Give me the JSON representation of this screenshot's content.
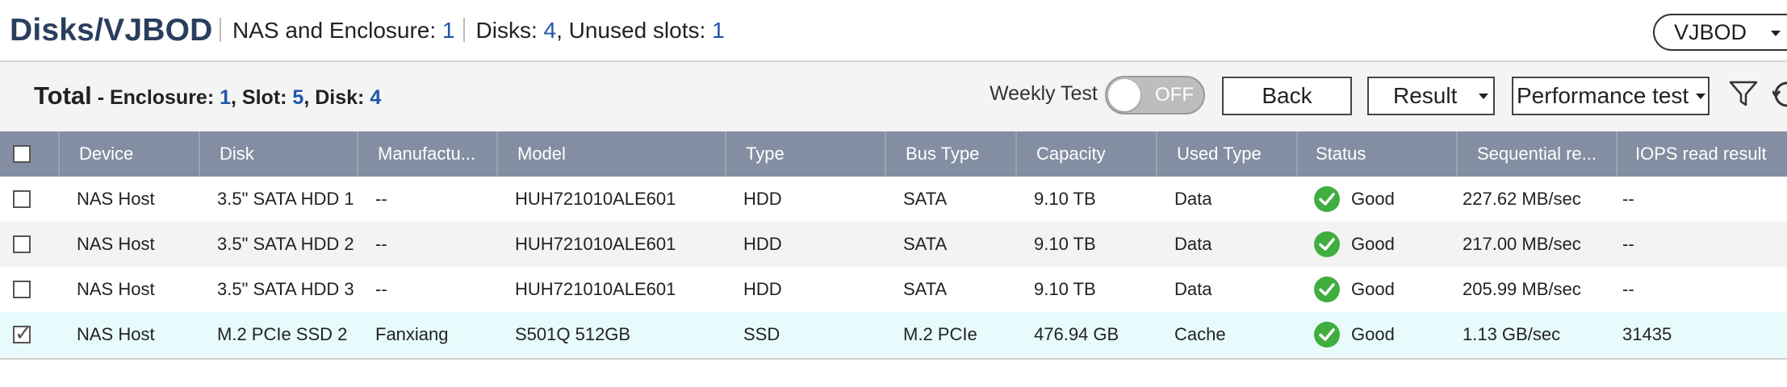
{
  "header": {
    "title": "Disks/VJBOD",
    "enclosure_label": "NAS and Enclosure: ",
    "enclosure_count": "1",
    "disks_label": "Disks: ",
    "disks_count": "4",
    "unused_label": ", Unused slots: ",
    "unused_count": "1",
    "view_select": "VJBOD"
  },
  "toolbar": {
    "total_label": "Total",
    "enclosure_label": " - Enclosure: ",
    "enclosure_count": "1",
    "slot_label": ", Slot: ",
    "slot_count": "5",
    "disk_label": ", Disk: ",
    "disk_count": "4",
    "weekly_test_label": "Weekly Test",
    "weekly_test_state": "OFF",
    "back_label": "Back",
    "result_label": "Result",
    "performance_label": "Performance test"
  },
  "table": {
    "columns": [
      "Device",
      "Disk",
      "Manufactu...",
      "Model",
      "Type",
      "Bus Type",
      "Capacity",
      "Used Type",
      "Status",
      "Sequential re...",
      "IOPS read result"
    ],
    "rows": [
      {
        "device": "NAS Host",
        "disk": "3.5\" SATA HDD 1",
        "manufacturer": "--",
        "model": "HUH721010ALE601",
        "type": "HDD",
        "bus": "SATA",
        "capacity": "9.10 TB",
        "used": "Data",
        "status": "Good",
        "sequential": "227.62 MB/sec",
        "iops": "--",
        "checked": false
      },
      {
        "device": "NAS Host",
        "disk": "3.5\" SATA HDD 2",
        "manufacturer": "--",
        "model": "HUH721010ALE601",
        "type": "HDD",
        "bus": "SATA",
        "capacity": "9.10 TB",
        "used": "Data",
        "status": "Good",
        "sequential": "217.00 MB/sec",
        "iops": "--",
        "checked": false
      },
      {
        "device": "NAS Host",
        "disk": "3.5\" SATA HDD 3",
        "manufacturer": "--",
        "model": "HUH721010ALE601",
        "type": "HDD",
        "bus": "SATA",
        "capacity": "9.10 TB",
        "used": "Data",
        "status": "Good",
        "sequential": "205.99 MB/sec",
        "iops": "--",
        "checked": false
      },
      {
        "device": "NAS Host",
        "disk": "M.2 PCIe SSD 2",
        "manufacturer": "Fanxiang",
        "model": "S501Q 512GB",
        "type": "SSD",
        "bus": "M.2 PCIe",
        "capacity": "476.94 GB",
        "used": "Cache",
        "status": "Good",
        "sequential": "1.13 GB/sec",
        "iops": "31435",
        "checked": true
      }
    ]
  },
  "colors": {
    "header_title": "#2a3e5e",
    "number_accent": "#1f55a8",
    "table_header_bg": "#848ea2",
    "selected_row_bg": "#e8fbfc",
    "status_good": "#3fae3f"
  },
  "icons": [
    "filter-icon",
    "refresh-icon",
    "chevron-down-icon",
    "status-good-icon",
    "checkbox"
  ]
}
